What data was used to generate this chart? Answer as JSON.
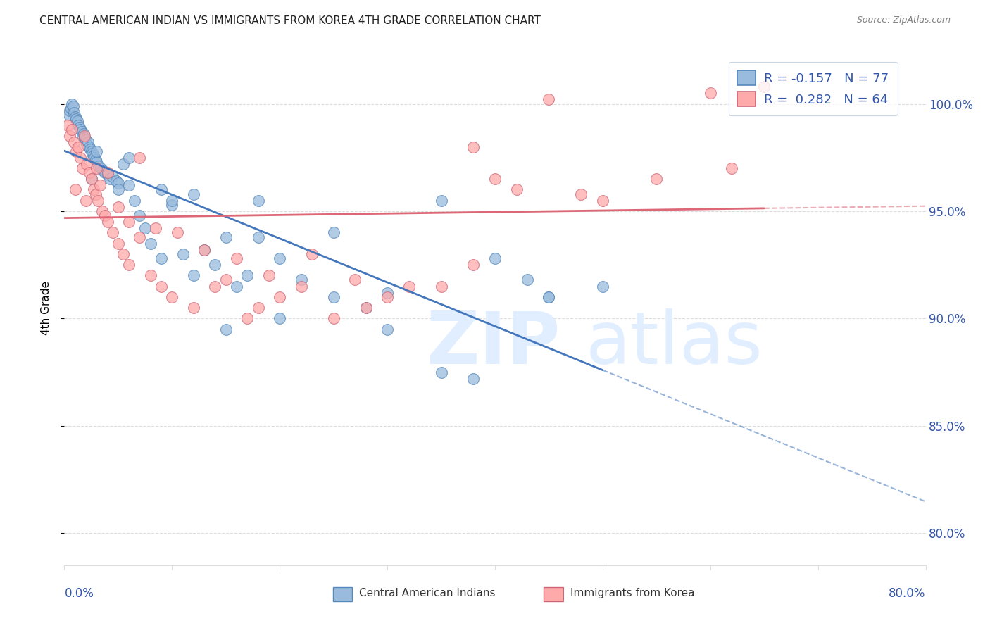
{
  "title": "CENTRAL AMERICAN INDIAN VS IMMIGRANTS FROM KOREA 4TH GRADE CORRELATION CHART",
  "source": "Source: ZipAtlas.com",
  "ylabel": "4th Grade",
  "yticks": [
    80.0,
    85.0,
    90.0,
    95.0,
    100.0
  ],
  "xmin": 0.0,
  "xmax": 80.0,
  "ymin": 78.5,
  "ymax": 102.5,
  "legend_blue": "R = -0.157   N = 77",
  "legend_pink": "R =  0.282   N = 64",
  "blue_marker_color": "#99BBDD",
  "blue_edge_color": "#5588BB",
  "pink_marker_color": "#FFAAAA",
  "pink_edge_color": "#CC6677",
  "blue_line_color": "#4477BB",
  "pink_line_color": "#DD6677",
  "watermark_color": "#E0EEFF",
  "grid_color": "#DDDDDD",
  "title_color": "#222222",
  "right_axis_color": "#3355AA",
  "blue_x": [
    0.4,
    0.5,
    0.6,
    0.7,
    0.8,
    0.9,
    1.0,
    1.1,
    1.2,
    1.3,
    1.4,
    1.5,
    1.6,
    1.7,
    1.8,
    1.9,
    2.0,
    2.1,
    2.2,
    2.3,
    2.4,
    2.5,
    2.6,
    2.7,
    2.8,
    2.9,
    3.0,
    3.2,
    3.4,
    3.6,
    3.8,
    4.0,
    4.2,
    4.5,
    4.8,
    5.0,
    5.5,
    6.0,
    6.5,
    7.0,
    7.5,
    8.0,
    9.0,
    10.0,
    11.0,
    12.0,
    13.0,
    14.0,
    15.0,
    16.0,
    17.0,
    18.0,
    20.0,
    22.0,
    25.0,
    28.0,
    30.0,
    35.0,
    38.0,
    40.0,
    43.0,
    45.0,
    2.5,
    5.0,
    10.0,
    15.0,
    20.0,
    30.0,
    3.0,
    6.0,
    9.0,
    12.0,
    18.0,
    25.0,
    35.0,
    45.0,
    50.0
  ],
  "blue_y": [
    99.5,
    99.7,
    99.8,
    100.0,
    99.9,
    99.6,
    99.4,
    99.3,
    99.2,
    99.0,
    98.9,
    98.8,
    98.7,
    98.5,
    98.6,
    98.4,
    98.3,
    98.1,
    98.2,
    98.0,
    97.9,
    97.8,
    97.7,
    97.6,
    97.5,
    97.4,
    97.3,
    97.1,
    97.0,
    96.9,
    96.8,
    96.7,
    96.5,
    96.6,
    96.4,
    96.3,
    97.2,
    96.2,
    95.5,
    94.8,
    94.2,
    93.5,
    92.8,
    95.3,
    93.0,
    92.0,
    93.2,
    92.5,
    93.8,
    91.5,
    92.0,
    95.5,
    92.8,
    91.8,
    91.0,
    90.5,
    91.2,
    87.5,
    87.2,
    92.8,
    91.8,
    91.0,
    96.5,
    96.0,
    95.5,
    89.5,
    90.0,
    89.5,
    97.8,
    97.5,
    96.0,
    95.8,
    93.8,
    94.0,
    95.5,
    91.0,
    91.5
  ],
  "pink_x": [
    0.3,
    0.5,
    0.7,
    0.9,
    1.1,
    1.3,
    1.5,
    1.7,
    1.9,
    2.1,
    2.3,
    2.5,
    2.7,
    2.9,
    3.1,
    3.3,
    3.5,
    3.8,
    4.0,
    4.5,
    5.0,
    5.5,
    6.0,
    7.0,
    8.0,
    9.0,
    10.0,
    12.0,
    14.0,
    15.0,
    17.0,
    18.0,
    20.0,
    22.0,
    25.0,
    28.0,
    30.0,
    35.0,
    40.0,
    45.0,
    50.0,
    60.0,
    65.0,
    1.0,
    2.0,
    3.0,
    4.0,
    5.0,
    6.0,
    7.0,
    8.5,
    10.5,
    13.0,
    16.0,
    19.0,
    23.0,
    27.0,
    32.0,
    38.0,
    42.0,
    48.0,
    55.0,
    62.0,
    38.0
  ],
  "pink_y": [
    99.0,
    98.5,
    98.8,
    98.2,
    97.8,
    98.0,
    97.5,
    97.0,
    98.5,
    97.2,
    96.8,
    96.5,
    96.0,
    95.8,
    95.5,
    96.2,
    95.0,
    94.8,
    94.5,
    94.0,
    93.5,
    93.0,
    92.5,
    93.8,
    92.0,
    91.5,
    91.0,
    90.5,
    91.5,
    91.8,
    90.0,
    90.5,
    91.0,
    91.5,
    90.0,
    90.5,
    91.0,
    91.5,
    96.5,
    100.2,
    95.5,
    100.5,
    100.8,
    96.0,
    95.5,
    97.0,
    96.8,
    95.2,
    94.5,
    97.5,
    94.2,
    94.0,
    93.2,
    92.8,
    92.0,
    93.0,
    91.8,
    91.5,
    98.0,
    96.0,
    95.8,
    96.5,
    97.0,
    92.5
  ]
}
